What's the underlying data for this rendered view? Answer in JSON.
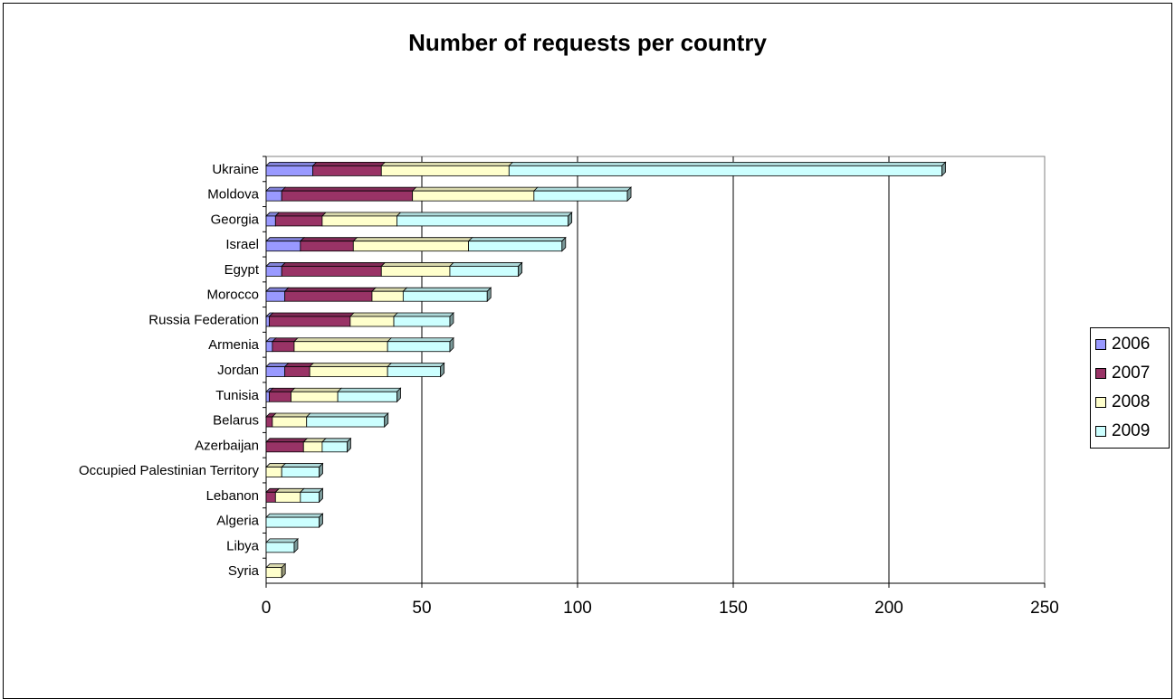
{
  "chart_data": {
    "type": "bar",
    "orientation": "horizontal",
    "stacked": true,
    "title": "Number of requests per country",
    "xlabel": "",
    "ylabel": "",
    "xlim": [
      0,
      250
    ],
    "x_ticks": [
      "0",
      "50",
      "100",
      "150",
      "200",
      "250"
    ],
    "grid": true,
    "legend_position": "right",
    "categories": [
      "Ukraine",
      "Moldova",
      "Georgia",
      "Israel",
      "Egypt",
      "Morocco",
      "Russia Federation",
      "Armenia",
      "Jordan",
      "Tunisia",
      "Belarus",
      "Azerbaijan",
      "Occupied Palestinian Territory",
      "Lebanon",
      "Algeria",
      "Libya",
      "Syria"
    ],
    "series": [
      {
        "name": "2006",
        "color": "#9999FF",
        "values": [
          15,
          5,
          3,
          11,
          5,
          6,
          1,
          2,
          6,
          1,
          0,
          0,
          0,
          0,
          0,
          0,
          0
        ]
      },
      {
        "name": "2007",
        "color": "#993366",
        "values": [
          22,
          42,
          15,
          17,
          32,
          28,
          26,
          7,
          8,
          7,
          2,
          12,
          0,
          3,
          0,
          0,
          0
        ]
      },
      {
        "name": "2008",
        "color": "#FFFFCC",
        "values": [
          41,
          39,
          24,
          37,
          22,
          10,
          14,
          30,
          25,
          15,
          11,
          6,
          5,
          8,
          0,
          0,
          5
        ]
      },
      {
        "name": "2009",
        "color": "#CCFFFF",
        "values": [
          139,
          30,
          55,
          30,
          22,
          27,
          18,
          20,
          17,
          19,
          25,
          8,
          12,
          6,
          17,
          9,
          0
        ]
      }
    ]
  }
}
